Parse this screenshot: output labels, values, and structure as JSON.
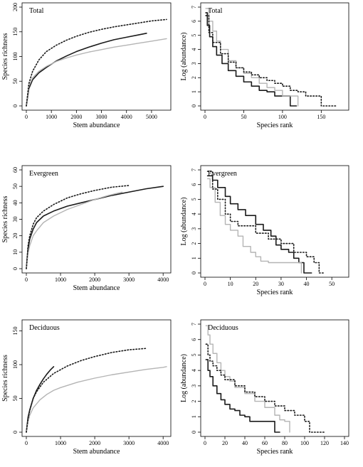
{
  "colors": {
    "black": "#1a1a1a",
    "gray": "#b4b4b4",
    "dotted": "#1a1a1a"
  },
  "chart_data": [
    {
      "id": "rare_total",
      "type": "line",
      "title": "Total",
      "xlabel": "Stem abundance",
      "ylabel": "Species richness",
      "xlim": [
        0,
        5600
      ],
      "ylim": [
        0,
        200
      ],
      "xticks": [
        0,
        1000,
        2000,
        3000,
        4000,
        5000
      ],
      "yticks": [
        0,
        50,
        100,
        150,
        200
      ],
      "series": [
        {
          "style": "black",
          "x": [
            0,
            100,
            250,
            500,
            800,
            1200,
            1600,
            2000,
            2500,
            3000,
            3500,
            4000,
            4500,
            4800
          ],
          "y": [
            0,
            35,
            53,
            67,
            78,
            91,
            101,
            110,
            119,
            127,
            134,
            139,
            144,
            147
          ]
        },
        {
          "style": "gray",
          "x": [
            0,
            100,
            250,
            500,
            800,
            1200,
            1600,
            2000,
            2500,
            3000,
            3500,
            4000,
            4500,
            5000,
            5600
          ],
          "y": [
            0,
            40,
            57,
            70,
            80,
            90,
            97,
            103,
            109,
            114,
            119,
            123,
            127,
            131,
            136
          ]
        },
        {
          "style": "dotted",
          "x": [
            0,
            100,
            250,
            500,
            800,
            1200,
            1600,
            2000,
            2500,
            3000,
            3500,
            4000,
            4500,
            5000,
            5600
          ],
          "y": [
            0,
            45,
            70,
            93,
            110,
            123,
            133,
            141,
            149,
            155,
            160,
            164,
            168,
            172,
            175
          ]
        }
      ]
    },
    {
      "id": "rank_total",
      "type": "line",
      "title": "Total",
      "xlabel": "Species rank",
      "ylabel": "Log (abundance)",
      "xlim": [
        0,
        180
      ],
      "ylim": [
        0,
        7
      ],
      "xticks": [
        0,
        50,
        100,
        150
      ],
      "yticks": [
        0,
        1,
        2,
        3,
        4,
        5,
        6,
        7
      ],
      "series": [
        {
          "style": "black",
          "x": [
            1,
            3,
            6,
            10,
            15,
            22,
            30,
            40,
            50,
            60,
            70,
            80,
            90,
            100,
            110,
            118
          ],
          "y": [
            6.6,
            5.7,
            4.9,
            4.2,
            3.6,
            3.0,
            2.5,
            2.1,
            1.7,
            1.4,
            1.1,
            1.0,
            0.7,
            0.7,
            0.0,
            0.0
          ]
        },
        {
          "style": "gray",
          "x": [
            1,
            5,
            10,
            15,
            20,
            30,
            40,
            50,
            60,
            70,
            80,
            90,
            100,
            110,
            120
          ],
          "y": [
            6.9,
            6.0,
            5.3,
            4.6,
            4.0,
            3.2,
            2.7,
            2.3,
            2.0,
            1.6,
            1.3,
            1.1,
            0.7,
            0.7,
            0.0
          ]
        },
        {
          "style": "dotted",
          "x": [
            1,
            5,
            10,
            20,
            30,
            40,
            50,
            60,
            70,
            80,
            90,
            100,
            110,
            120,
            130,
            140,
            150,
            160,
            170
          ],
          "y": [
            6.4,
            5.2,
            4.5,
            3.7,
            3.1,
            2.7,
            2.4,
            2.2,
            2.0,
            1.8,
            1.6,
            1.4,
            1.1,
            1.0,
            0.7,
            0.7,
            0.0,
            0.0,
            0.0
          ]
        }
      ]
    },
    {
      "id": "rare_evergreen",
      "type": "line",
      "title": "Evergreen",
      "xlabel": "Stem abundance",
      "ylabel": "Species richness",
      "xlim": [
        0,
        4100
      ],
      "ylim": [
        0,
        60
      ],
      "xticks": [
        0,
        1000,
        2000,
        3000,
        4000
      ],
      "yticks": [
        0,
        10,
        20,
        30,
        40,
        50,
        60
      ],
      "series": [
        {
          "style": "black",
          "x": [
            0,
            50,
            100,
            200,
            300,
            500,
            800,
            1200,
            1600,
            2000,
            2500,
            3000,
            3500,
            4000
          ],
          "y": [
            0,
            12,
            18,
            24,
            28,
            32,
            35,
            38,
            40,
            42,
            44.5,
            46.5,
            48.5,
            50
          ]
        },
        {
          "style": "gray",
          "x": [
            0,
            50,
            100,
            200,
            300,
            500,
            800,
            1200,
            1600,
            2000,
            2400,
            2800
          ],
          "y": [
            0,
            9,
            14,
            20,
            23,
            28,
            32,
            36,
            39,
            42,
            44.5,
            46.5
          ]
        },
        {
          "style": "dotted",
          "x": [
            0,
            50,
            100,
            200,
            300,
            500,
            800,
            1200,
            1600,
            2000,
            2500,
            3000
          ],
          "y": [
            0,
            14,
            20,
            27,
            31,
            35,
            39,
            43,
            45.5,
            47.5,
            49.5,
            50.5
          ]
        }
      ]
    },
    {
      "id": "rank_evergreen",
      "type": "line",
      "title": "Evergreen",
      "xlabel": "Species rank",
      "ylabel": "Log (abundance)",
      "xlim": [
        0,
        55
      ],
      "ylim": [
        0,
        7
      ],
      "xticks": [
        0,
        10,
        20,
        30,
        40,
        50
      ],
      "yticks": [
        0,
        1,
        2,
        3,
        4,
        5,
        6,
        7
      ],
      "series": [
        {
          "style": "black",
          "x": [
            1,
            3,
            5,
            8,
            10,
            13,
            16,
            20,
            23,
            26,
            28,
            30,
            33,
            35,
            37,
            38,
            39,
            40,
            42
          ],
          "y": [
            6.6,
            6.3,
            5.8,
            5.2,
            4.7,
            4.3,
            3.9,
            3.3,
            2.9,
            2.5,
            1.9,
            1.6,
            1.4,
            1.0,
            0.7,
            0.7,
            0.0,
            0.0,
            0.0
          ]
        },
        {
          "style": "gray",
          "x": [
            1,
            2,
            4,
            6,
            8,
            10,
            13,
            15,
            18,
            20,
            22,
            25,
            30,
            35,
            38
          ],
          "y": [
            6.4,
            5.8,
            4.8,
            3.9,
            3.3,
            2.9,
            2.5,
            1.8,
            1.4,
            1.1,
            0.8,
            0.7,
            0.7,
            0.7,
            0.0
          ]
        },
        {
          "style": "dotted",
          "x": [
            1,
            3,
            5,
            8,
            10,
            13,
            15,
            20,
            25,
            30,
            35,
            40,
            43,
            45,
            47
          ],
          "y": [
            6.9,
            5.7,
            5.0,
            4.0,
            3.5,
            3.2,
            3.2,
            2.7,
            2.3,
            2.0,
            1.4,
            1.1,
            0.7,
            0.0,
            0.0
          ]
        }
      ]
    },
    {
      "id": "rare_deciduous",
      "type": "line",
      "title": "Deciduous",
      "xlabel": "Stem abundance",
      "ylabel": "Species richness",
      "xlim": [
        0,
        4100
      ],
      "ylim": [
        0,
        160
      ],
      "xticks": [
        0,
        1000,
        2000,
        3000,
        4000
      ],
      "yticks": [
        0,
        50,
        100,
        150
      ],
      "series": [
        {
          "style": "black",
          "x": [
            0,
            50,
            100,
            200,
            300,
            400,
            500,
            600,
            700,
            800
          ],
          "y": [
            0,
            22,
            33,
            50,
            62,
            71,
            79,
            86,
            92,
            97
          ]
        },
        {
          "style": "gray",
          "x": [
            0,
            50,
            100,
            200,
            400,
            600,
            800,
            1000,
            1500,
            2000,
            2500,
            3000,
            3500,
            4000,
            4100
          ],
          "y": [
            0,
            15,
            25,
            36,
            48,
            56,
            62,
            66,
            74,
            80,
            85,
            89,
            93,
            96,
            97
          ]
        },
        {
          "style": "dotted",
          "x": [
            0,
            50,
            100,
            200,
            300,
            500,
            800,
            1200,
            1600,
            2000,
            2500,
            3000,
            3500
          ],
          "y": [
            0,
            20,
            32,
            50,
            60,
            74,
            87,
            98,
            106,
            112,
            118,
            122,
            124
          ]
        }
      ]
    },
    {
      "id": "rank_deciduous",
      "type": "line",
      "title": "Deciduous",
      "xlabel": "Species rank",
      "ylabel": "Log (abundance)",
      "xlim": [
        0,
        140
      ],
      "ylim": [
        0,
        7
      ],
      "xticks": [
        0,
        20,
        40,
        60,
        80,
        100,
        120,
        140
      ],
      "yticks": [
        0,
        1,
        2,
        3,
        4,
        5,
        6,
        7
      ],
      "series": [
        {
          "style": "black",
          "x": [
            1,
            3,
            5,
            8,
            12,
            16,
            20,
            25,
            30,
            35,
            40,
            45,
            50,
            55,
            60,
            65,
            70,
            75
          ],
          "y": [
            4.7,
            4.0,
            3.6,
            3.0,
            2.5,
            2.1,
            1.8,
            1.5,
            1.4,
            1.1,
            1.0,
            0.7,
            0.7,
            0.7,
            0.7,
            0.7,
            0.0,
            0.0
          ]
        },
        {
          "style": "gray",
          "x": [
            1,
            3,
            5,
            8,
            12,
            16,
            20,
            25,
            30,
            40,
            50,
            60,
            70,
            75,
            80,
            85
          ],
          "y": [
            6.9,
            6.3,
            5.7,
            5.1,
            4.5,
            4.0,
            3.6,
            3.3,
            2.9,
            2.5,
            2.0,
            1.6,
            1.1,
            0.8,
            0.7,
            0.0
          ]
        },
        {
          "style": "dotted",
          "x": [
            1,
            3,
            5,
            8,
            12,
            16,
            20,
            30,
            40,
            50,
            60,
            70,
            80,
            90,
            100,
            105,
            110,
            120
          ],
          "y": [
            5.7,
            5.0,
            4.6,
            4.3,
            4.0,
            3.7,
            3.4,
            3.0,
            2.6,
            2.3,
            2.0,
            1.7,
            1.4,
            1.1,
            0.7,
            0.0,
            0.0,
            0.0
          ]
        }
      ]
    }
  ]
}
